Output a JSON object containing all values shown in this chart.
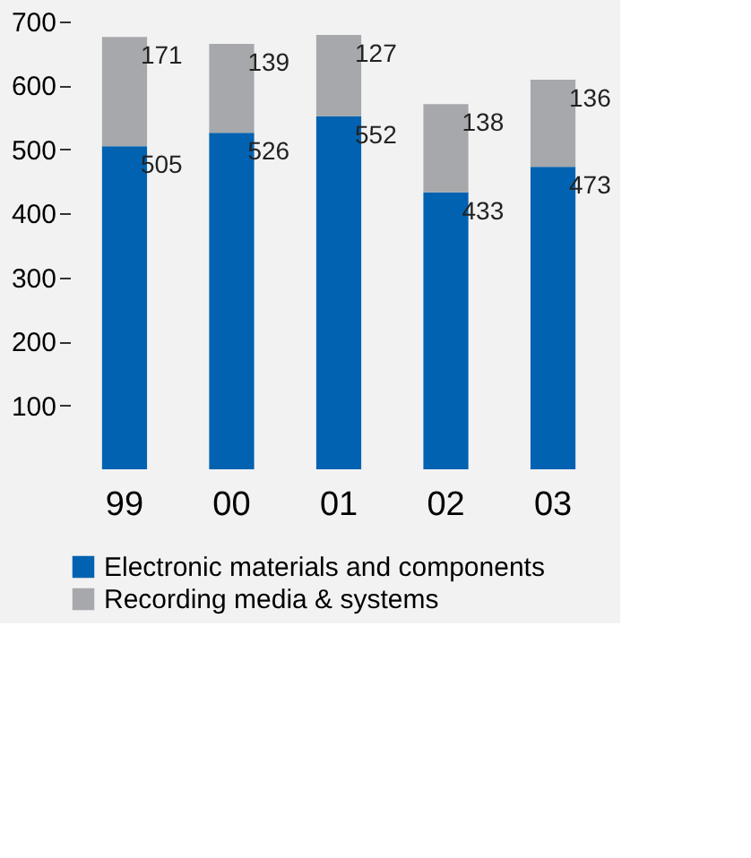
{
  "chart_data": {
    "type": "bar",
    "stacked": true,
    "data_labels": true,
    "legend": "bottom",
    "categories": [
      "99",
      "00",
      "01",
      "02",
      "03"
    ],
    "ylim": [
      0,
      700
    ],
    "yticks": [
      100,
      200,
      300,
      400,
      500,
      600,
      700
    ],
    "series": [
      {
        "name": "Electronic materials and components",
        "color": "#0062b1",
        "values": [
          505,
          526,
          552,
          433,
          473
        ]
      },
      {
        "name": "Recording media & systems",
        "color": "#a6a8ab",
        "values": [
          171,
          139,
          127,
          138,
          136
        ]
      }
    ]
  }
}
